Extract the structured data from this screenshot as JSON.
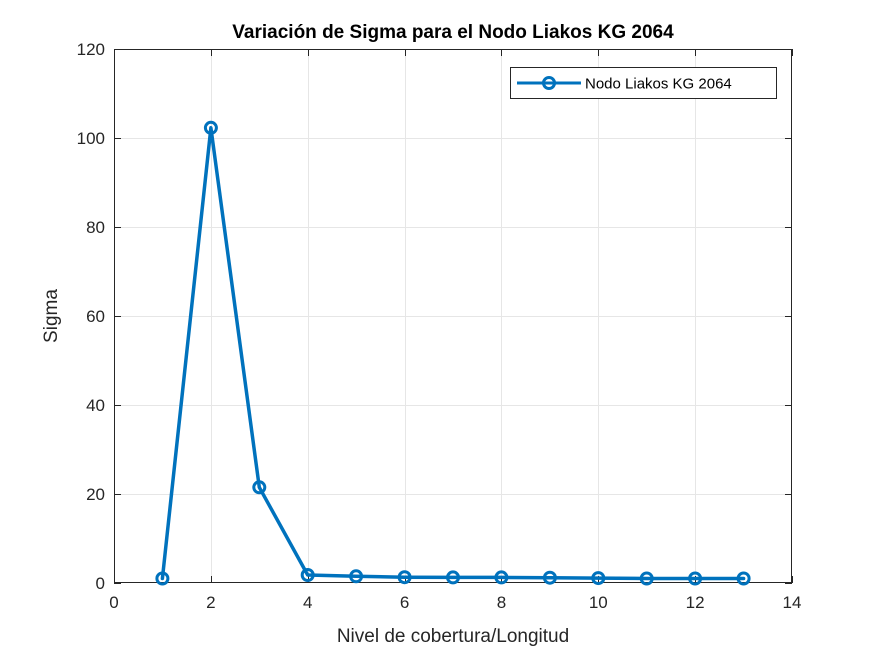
{
  "chart_data": {
    "type": "line",
    "title": "Variación de Sigma para el Nodo Liakos KG 2064",
    "xlabel": "Nivel de cobertura/Longitud",
    "ylabel": "Sigma",
    "xlim": [
      0,
      14
    ],
    "ylim": [
      0,
      120
    ],
    "xticks": [
      0,
      2,
      4,
      6,
      8,
      10,
      12,
      14
    ],
    "yticks": [
      0,
      20,
      40,
      60,
      80,
      100,
      120
    ],
    "grid": true,
    "legend_position": "top-right",
    "series": [
      {
        "name": "Nodo Liakos KG 2064",
        "color": "#0072BD",
        "marker": "circle",
        "x": [
          1,
          2,
          3,
          4,
          5,
          6,
          7,
          8,
          9,
          10,
          11,
          12,
          13
        ],
        "y": [
          1.0,
          102.3,
          21.5,
          1.8,
          1.5,
          1.3,
          1.25,
          1.25,
          1.2,
          1.1,
          1.0,
          1.0,
          1.0
        ]
      }
    ]
  }
}
